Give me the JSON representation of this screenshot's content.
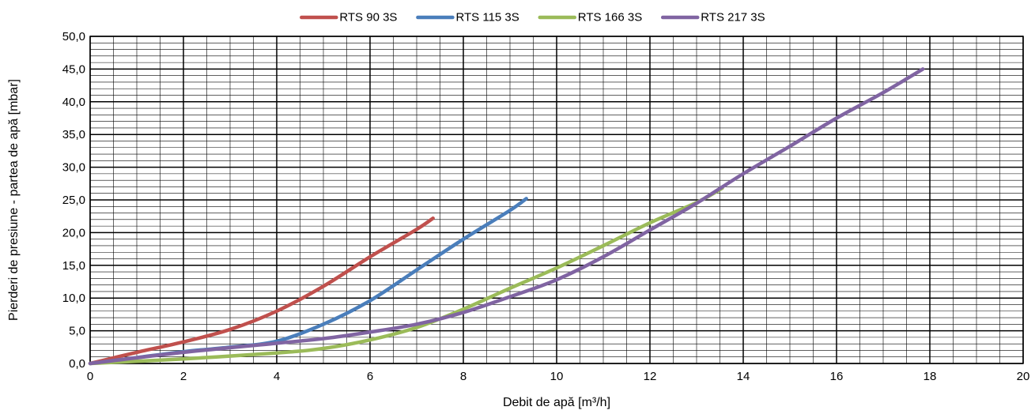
{
  "chart_data": {
    "type": "line",
    "title": "",
    "xlabel": "Debit de apă [m³/h]",
    "ylabel": "Pierderi de presiune - partea de apă [mbar]",
    "xlim": [
      0,
      20
    ],
    "ylim": [
      0,
      50
    ],
    "x_ticks": [
      0,
      2,
      4,
      6,
      8,
      10,
      12,
      14,
      16,
      18,
      20
    ],
    "y_ticks": [
      "0,0",
      "5,0",
      "10,0",
      "15,0",
      "20,0",
      "25,0",
      "30,0",
      "35,0",
      "40,0",
      "45,0",
      "50,0"
    ],
    "grid": true,
    "legend_position": "top",
    "series": [
      {
        "name": "RTS 90 3S",
        "color": "#c0504d",
        "points": [
          [
            0,
            0
          ],
          [
            1,
            1.7
          ],
          [
            2,
            3.3
          ],
          [
            3,
            5.2
          ],
          [
            4,
            8.0
          ],
          [
            5,
            11.8
          ],
          [
            6,
            16.3
          ],
          [
            7,
            20.5
          ],
          [
            7.35,
            22.2
          ]
        ]
      },
      {
        "name": "RTS 115 3S",
        "color": "#4a7ebb",
        "points": [
          [
            0,
            0
          ],
          [
            1,
            0.9
          ],
          [
            2,
            1.8
          ],
          [
            3,
            2.5
          ],
          [
            4,
            3.4
          ],
          [
            5,
            6.0
          ],
          [
            6,
            9.6
          ],
          [
            7,
            14.3
          ],
          [
            8,
            19.0
          ],
          [
            9,
            23.4
          ],
          [
            9.35,
            25.2
          ]
        ]
      },
      {
        "name": "RTS 166 3S",
        "color": "#9bbb59",
        "points": [
          [
            0,
            0
          ],
          [
            2,
            0.7
          ],
          [
            4,
            1.6
          ],
          [
            5,
            2.3
          ],
          [
            6,
            3.6
          ],
          [
            7,
            5.5
          ],
          [
            8,
            8.3
          ],
          [
            9,
            11.5
          ],
          [
            10,
            14.6
          ],
          [
            11,
            18.0
          ],
          [
            12,
            21.5
          ],
          [
            13,
            24.6
          ],
          [
            13.55,
            26.8
          ]
        ]
      },
      {
        "name": "RTS 217 3S",
        "color": "#8064a2",
        "points": [
          [
            0,
            0
          ],
          [
            2,
            1.7
          ],
          [
            4,
            3.1
          ],
          [
            5,
            3.8
          ],
          [
            6,
            4.8
          ],
          [
            7,
            6.0
          ],
          [
            8,
            7.8
          ],
          [
            9,
            10.2
          ],
          [
            10,
            12.8
          ],
          [
            11,
            16.3
          ],
          [
            12,
            20.4
          ],
          [
            13,
            24.5
          ],
          [
            14,
            29.0
          ],
          [
            15,
            33.2
          ],
          [
            16,
            37.5
          ],
          [
            17,
            41.4
          ],
          [
            17.85,
            45.0
          ]
        ]
      }
    ]
  }
}
